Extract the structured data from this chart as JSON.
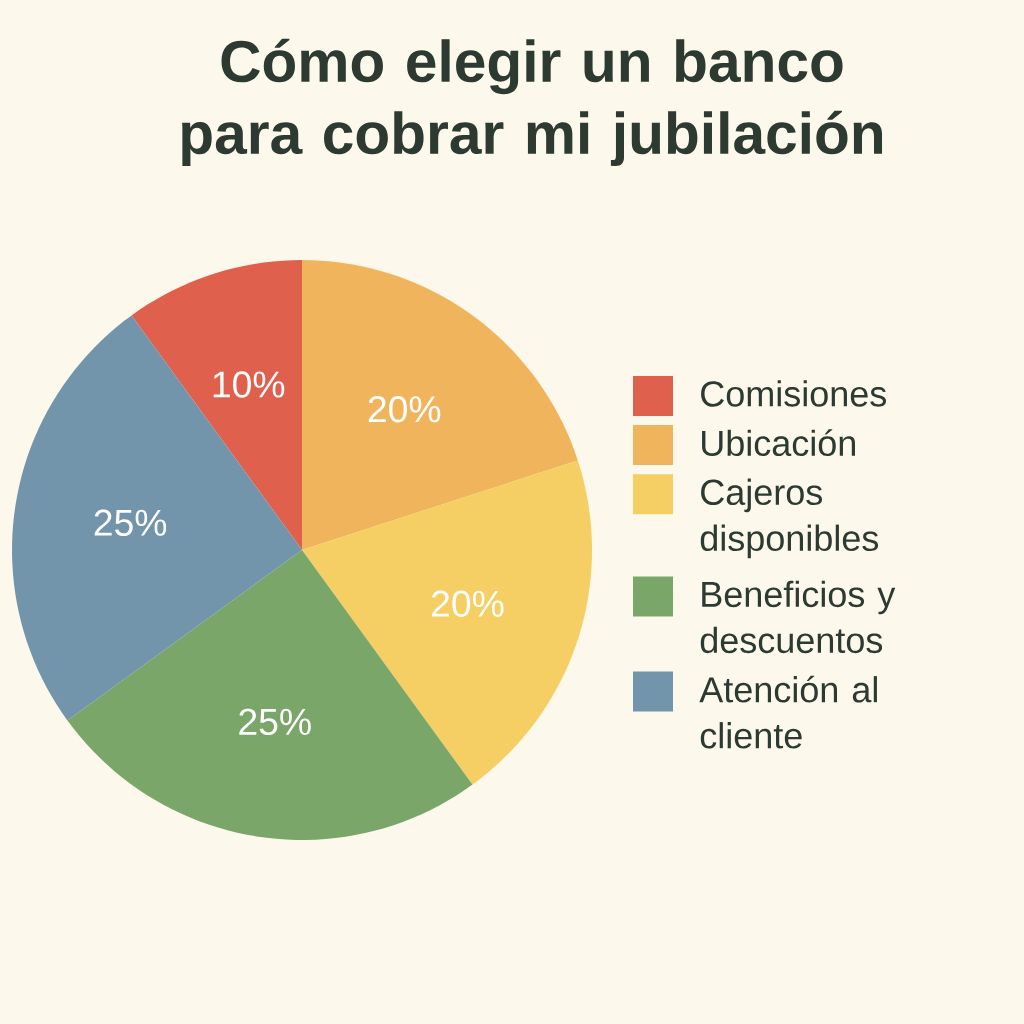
{
  "chart_data": {
    "type": "pie",
    "title": "Cómo elegir un banco para cobrar mi jubilación",
    "categories": [
      "Comisiones",
      "Ubicación",
      "Cajeros disponibles",
      "Beneficios y descuentos",
      "Atención al cliente"
    ],
    "values": [
      10,
      20,
      20,
      25,
      25
    ],
    "value_labels": [
      "10%",
      "20%",
      "20%",
      "25%",
      "25%"
    ],
    "colors": [
      "#e0604e",
      "#f0b45c",
      "#f5cf63",
      "#7ba66a",
      "#7295ab"
    ],
    "legend": "right"
  }
}
